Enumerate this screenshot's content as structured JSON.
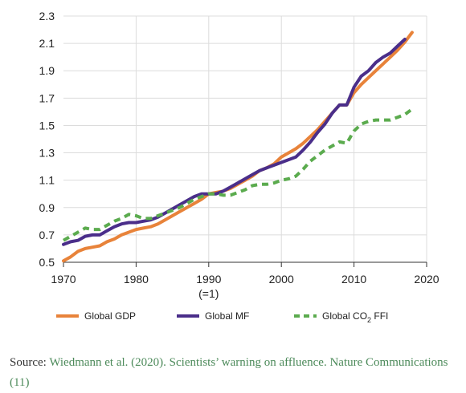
{
  "chart_data": {
    "type": "line",
    "title": "",
    "xlabel": "",
    "ylabel": "",
    "xlim": [
      1970,
      2020
    ],
    "ylim": [
      0.5,
      2.3
    ],
    "grid": true,
    "legend_position": "bottom",
    "x_ticks": [
      {
        "value": 1970,
        "label": "1970"
      },
      {
        "value": 1980,
        "label": "1980"
      },
      {
        "value": 1990,
        "label": "1990"
      },
      {
        "value": 2000,
        "label": "2000"
      },
      {
        "value": 2010,
        "label": "2010"
      },
      {
        "value": 2020,
        "label": "2020"
      }
    ],
    "x_subtick": {
      "value": 1990,
      "label": "(=1)"
    },
    "y_ticks": [
      {
        "value": 0.5,
        "label": "0.5"
      },
      {
        "value": 0.7,
        "label": "0.7"
      },
      {
        "value": 0.9,
        "label": "0.9"
      },
      {
        "value": 1.1,
        "label": "1.1"
      },
      {
        "value": 1.3,
        "label": "1.3"
      },
      {
        "value": 1.5,
        "label": "1.5"
      },
      {
        "value": 1.7,
        "label": "1.7"
      },
      {
        "value": 1.9,
        "label": "1.9"
      },
      {
        "value": 2.1,
        "label": "2.1"
      },
      {
        "value": 2.3,
        "label": "2.3"
      }
    ],
    "series": [
      {
        "name": "Global GDP",
        "color": "#e8833a",
        "dash": "solid",
        "x": [
          1970,
          1971,
          1972,
          1973,
          1974,
          1975,
          1976,
          1977,
          1978,
          1979,
          1980,
          1981,
          1982,
          1983,
          1984,
          1985,
          1986,
          1987,
          1988,
          1989,
          1990,
          1991,
          1992,
          1993,
          1994,
          1995,
          1996,
          1997,
          1998,
          1999,
          2000,
          2001,
          2002,
          2003,
          2004,
          2005,
          2006,
          2007,
          2008,
          2009,
          2010,
          2011,
          2012,
          2013,
          2014,
          2015,
          2016,
          2017,
          2018
        ],
        "y": [
          0.51,
          0.54,
          0.58,
          0.6,
          0.61,
          0.62,
          0.65,
          0.67,
          0.7,
          0.72,
          0.74,
          0.75,
          0.76,
          0.78,
          0.81,
          0.84,
          0.87,
          0.9,
          0.93,
          0.96,
          1.0,
          1.01,
          1.02,
          1.04,
          1.07,
          1.1,
          1.13,
          1.17,
          1.19,
          1.22,
          1.27,
          1.3,
          1.33,
          1.37,
          1.42,
          1.47,
          1.53,
          1.59,
          1.65,
          1.65,
          1.74,
          1.8,
          1.85,
          1.9,
          1.95,
          2.0,
          2.05,
          2.11,
          2.18
        ]
      },
      {
        "name": "Global MF",
        "color": "#4a2e8a",
        "dash": "solid",
        "x": [
          1970,
          1971,
          1972,
          1973,
          1974,
          1975,
          1976,
          1977,
          1978,
          1979,
          1980,
          1981,
          1982,
          1983,
          1984,
          1985,
          1986,
          1987,
          1988,
          1989,
          1990,
          1991,
          1992,
          1993,
          1994,
          1995,
          1996,
          1997,
          1998,
          1999,
          2000,
          2001,
          2002,
          2003,
          2004,
          2005,
          2006,
          2007,
          2008,
          2009,
          2010,
          2011,
          2012,
          2013,
          2014,
          2015,
          2016,
          2017
        ],
        "y": [
          0.63,
          0.65,
          0.66,
          0.69,
          0.7,
          0.7,
          0.73,
          0.76,
          0.78,
          0.79,
          0.79,
          0.8,
          0.81,
          0.83,
          0.86,
          0.89,
          0.92,
          0.95,
          0.98,
          1.0,
          1.0,
          1.0,
          1.02,
          1.05,
          1.08,
          1.11,
          1.14,
          1.17,
          1.19,
          1.21,
          1.23,
          1.25,
          1.27,
          1.32,
          1.38,
          1.45,
          1.51,
          1.59,
          1.65,
          1.65,
          1.78,
          1.86,
          1.9,
          1.96,
          2.0,
          2.03,
          2.08,
          2.13
        ]
      },
      {
        "name": "Global CO₂ FFI",
        "color": "#5bab4e",
        "dash": "dashed",
        "x": [
          1970,
          1971,
          1972,
          1973,
          1974,
          1975,
          1976,
          1977,
          1978,
          1979,
          1980,
          1981,
          1982,
          1983,
          1984,
          1985,
          1986,
          1987,
          1988,
          1989,
          1990,
          1991,
          1992,
          1993,
          1994,
          1995,
          1996,
          1997,
          1998,
          1999,
          2000,
          2001,
          2002,
          2003,
          2004,
          2005,
          2006,
          2007,
          2008,
          2009,
          2010,
          2011,
          2012,
          2013,
          2014,
          2015,
          2016,
          2017,
          2018
        ],
        "y": [
          0.66,
          0.69,
          0.72,
          0.75,
          0.74,
          0.74,
          0.77,
          0.8,
          0.82,
          0.85,
          0.84,
          0.82,
          0.82,
          0.84,
          0.86,
          0.88,
          0.9,
          0.93,
          0.96,
          0.98,
          1.0,
          1.0,
          0.99,
          0.99,
          1.01,
          1.03,
          1.06,
          1.07,
          1.07,
          1.08,
          1.1,
          1.11,
          1.13,
          1.18,
          1.24,
          1.28,
          1.32,
          1.35,
          1.38,
          1.37,
          1.46,
          1.51,
          1.53,
          1.54,
          1.54,
          1.54,
          1.56,
          1.58,
          1.62
        ]
      }
    ]
  },
  "legend": [
    {
      "base": "Global GDP",
      "sub": "",
      "suffix": "",
      "color": "#e8833a",
      "dash": "solid"
    },
    {
      "base": "Global MF",
      "sub": "",
      "suffix": "",
      "color": "#4a2e8a",
      "dash": "solid"
    },
    {
      "base": "Global CO",
      "sub": "2",
      "suffix": " FFI",
      "color": "#5bab4e",
      "dash": "dashed"
    }
  ],
  "caption": {
    "prefix": "Source: ",
    "link_text": "Wiedmann et al. (2020). Scientists’ warning on affluence. Nature Communications (11)"
  }
}
